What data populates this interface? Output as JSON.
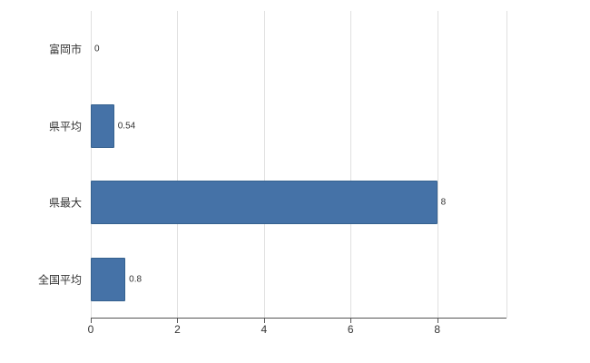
{
  "chart_data": {
    "type": "bar",
    "orientation": "horizontal",
    "title": "",
    "xlabel": "",
    "ylabel": "",
    "categories": [
      "富岡市",
      "県平均",
      "県最大",
      "全国平均"
    ],
    "values": [
      0,
      0.54,
      8,
      0.8
    ],
    "value_labels": [
      "0",
      "0.54",
      "8",
      "0.8"
    ],
    "xlim": [
      0,
      9.6
    ],
    "xticks": [
      0,
      2,
      4,
      6,
      8
    ],
    "grid": true,
    "legend": "none",
    "bar_color": "#4572a7",
    "bar_border_color": "#35618f",
    "gridline_color": "#e0e0e0",
    "axis_line_color": "#555555",
    "label_color": "#333333"
  }
}
